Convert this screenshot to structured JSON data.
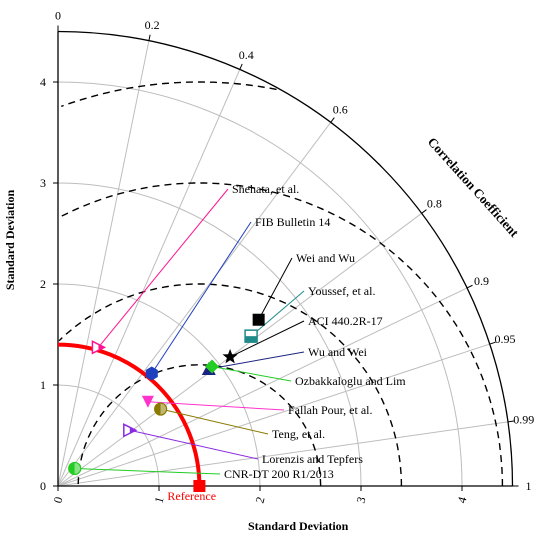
{
  "chart_data": {
    "type": "taylor",
    "x_axis_label": "Standard Deviation",
    "y_axis_label": "Standard Deviation",
    "arc_label": "Correlation Coefficient",
    "std_ticks": [
      "0",
      "1",
      "2",
      "3",
      "4"
    ],
    "max_std": 4.5,
    "correlation_ticks": [
      "0",
      "0.2",
      "0.4",
      "0.6",
      "0.8",
      "0.9",
      "0.95",
      "0.99",
      "1"
    ],
    "correlation_tick_values": [
      0,
      0.2,
      0.4,
      0.6,
      0.8,
      0.9,
      0.95,
      0.99,
      1
    ],
    "reference": {
      "label": "Reference",
      "std": 1.4,
      "correlation": 1,
      "color": "#ff0000"
    },
    "rms_contours": [
      1.2,
      2.0,
      3.0,
      4.0
    ],
    "series": [
      {
        "name": "Shehata, et al.",
        "std": 1.43,
        "correlation": 0.28,
        "marker": "triangle-right",
        "color": "#ff1493"
      },
      {
        "name": "FIB Bulletin 14",
        "std": 1.45,
        "correlation": 0.64,
        "marker": "hexagon",
        "color": "#1f3fbf"
      },
      {
        "name": "Wei and Wu",
        "std": 2.58,
        "correlation": 0.77,
        "marker": "square",
        "color": "#000000"
      },
      {
        "name": "Youssef, et al.",
        "std": 2.42,
        "correlation": 0.79,
        "marker": "square-split",
        "color": "#1f8a8a"
      },
      {
        "name": "ACI 440.2R-17",
        "std": 2.13,
        "correlation": 0.8,
        "marker": "star",
        "color": "#000000"
      },
      {
        "name": "Wu and Wei",
        "std": 1.89,
        "correlation": 0.79,
        "marker": "triangle",
        "color": "#1a237e"
      },
      {
        "name": "Ozbakkaloglu and Lim",
        "std": 1.93,
        "correlation": 0.79,
        "marker": "diamond",
        "color": "#22cc22"
      },
      {
        "name": "Fallah Pour, et al.",
        "std": 1.22,
        "correlation": 0.73,
        "marker": "triangle-down",
        "color": "#ff33cc"
      },
      {
        "name": "Teng, et al.",
        "std": 1.27,
        "correlation": 0.8,
        "marker": "circle-half",
        "color": "#8a7a00"
      },
      {
        "name": "Lorenzis and Tepfers",
        "std": 0.9,
        "correlation": 0.79,
        "marker": "triangle-right",
        "color": "#8a2be2"
      },
      {
        "name": "CNR-DT 200 R1/2013",
        "std": 0.24,
        "correlation": 0.69,
        "marker": "circle-half",
        "color": "#22cc22"
      }
    ]
  }
}
